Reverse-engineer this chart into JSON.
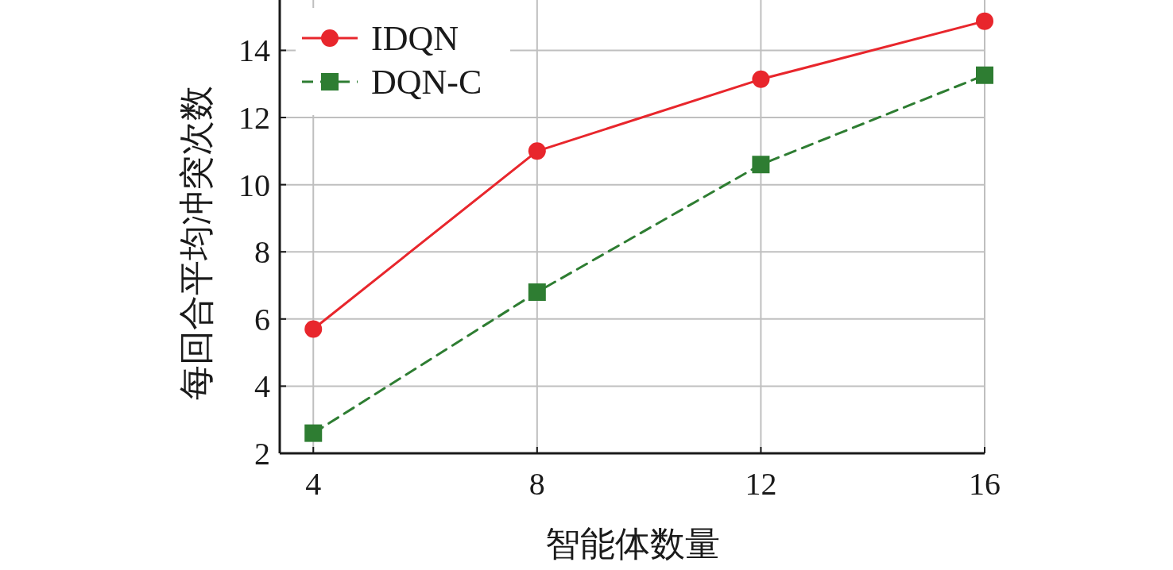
{
  "chart_data": {
    "type": "line",
    "xlabel": "智能体数量",
    "ylabel": "每回合平均冲突次数",
    "x": [
      4,
      8,
      12,
      16
    ],
    "series": [
      {
        "name": "IDQN",
        "color": "#e8262c",
        "values": [
          5.7,
          11.0,
          13.14,
          14.87
        ],
        "marker": "circle",
        "line_style": "solid"
      },
      {
        "name": "DQN-C",
        "color": "#2e7d32",
        "values": [
          2.6,
          6.8,
          10.6,
          13.26
        ],
        "marker": "square",
        "line_style": "dashed"
      }
    ],
    "xlim": [
      3.4,
      16
    ],
    "ylim": [
      2,
      15.5
    ],
    "xticks": [
      4,
      8,
      12,
      16
    ],
    "yticks": [
      2,
      4,
      6,
      8,
      10,
      12,
      14
    ],
    "grid": true,
    "legend": "top left"
  }
}
